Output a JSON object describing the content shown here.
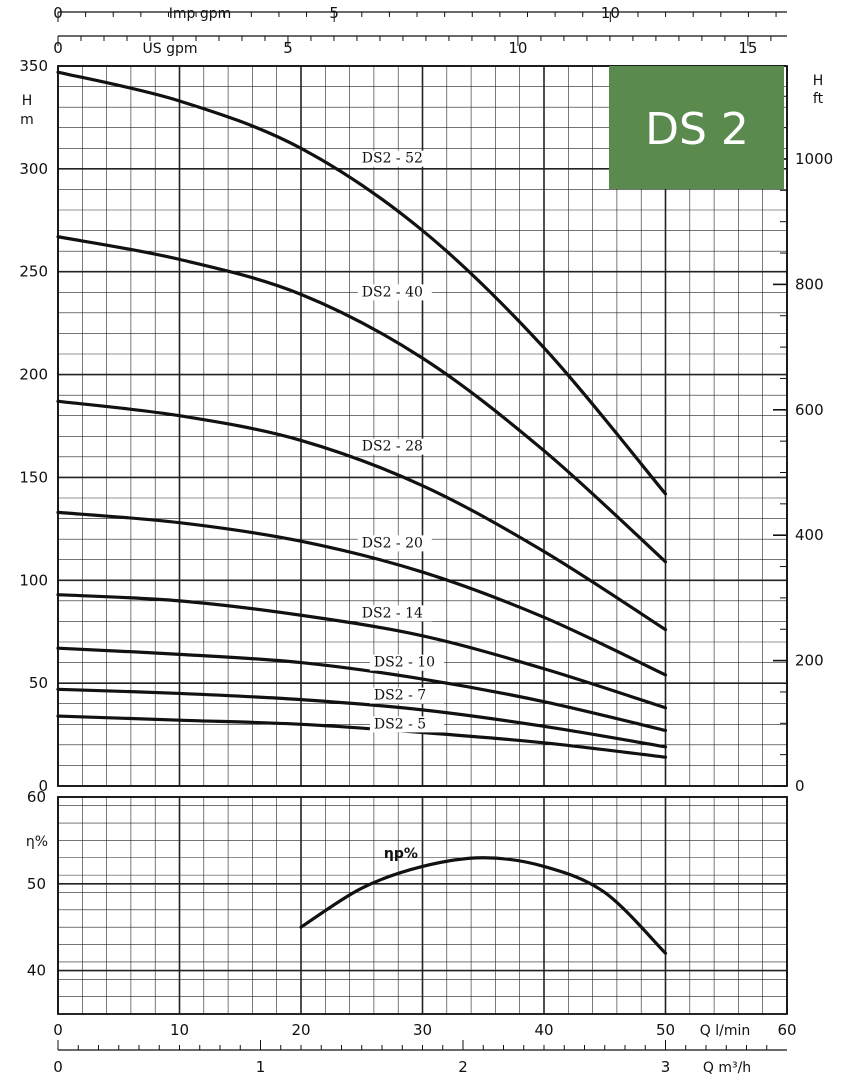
{
  "badge": {
    "text": "DS 2",
    "color": "#5b8a4f"
  },
  "colors": {
    "line": "#111111",
    "grid": "#222222",
    "background": "#ffffff"
  },
  "axes": {
    "imp_gpm": {
      "label": "Imp gpm",
      "ticks": [
        "0",
        "5",
        "10"
      ],
      "values": [
        0,
        5,
        10
      ]
    },
    "us_gpm": {
      "label": "US gpm",
      "ticks": [
        "0",
        "5",
        "10",
        "15"
      ],
      "values": [
        0,
        5,
        10,
        15
      ]
    },
    "head_m": {
      "label": [
        "H",
        "m"
      ],
      "ticks": [
        "350",
        "300",
        "250",
        "200",
        "150",
        "100",
        "50",
        "0"
      ],
      "values": [
        350,
        300,
        250,
        200,
        150,
        100,
        50,
        0
      ]
    },
    "head_ft": {
      "label": [
        "H",
        "ft"
      ],
      "ticks": [
        "1000",
        "800",
        "600",
        "400",
        "200",
        "0"
      ],
      "values": [
        1000,
        800,
        600,
        400,
        200,
        0
      ]
    },
    "efficiency": {
      "label": "η%",
      "ticks": [
        "60",
        "50",
        "40"
      ],
      "values": [
        60,
        50,
        40
      ]
    },
    "q_lmin": {
      "label": "Q l/min",
      "ticks": [
        "0",
        "10",
        "20",
        "30",
        "40",
        "50",
        "60"
      ],
      "values": [
        0,
        10,
        20,
        30,
        40,
        50,
        60
      ]
    },
    "q_m3h": {
      "label": "Q m³/h",
      "ticks": [
        "0",
        "1",
        "2",
        "3"
      ],
      "values": [
        0,
        1,
        2,
        3
      ]
    }
  },
  "chart_data": [
    {
      "type": "line",
      "title": "DS 2",
      "xlabel": "Q l/min",
      "ylabel": "H m",
      "xlim": [
        0,
        60
      ],
      "ylim": [
        0,
        350
      ],
      "grid": true,
      "series": [
        {
          "name": "DS2 - 52",
          "label_at": [
            25,
            303
          ],
          "x": [
            0,
            10,
            20,
            30,
            40,
            50
          ],
          "y": [
            347,
            333,
            310,
            270,
            213,
            142
          ]
        },
        {
          "name": "DS2 - 40",
          "label_at": [
            25,
            238
          ],
          "x": [
            0,
            10,
            20,
            30,
            40,
            50
          ],
          "y": [
            267,
            256,
            239,
            208,
            163,
            109
          ]
        },
        {
          "name": "DS2 - 28",
          "label_at": [
            25,
            163
          ],
          "x": [
            0,
            10,
            20,
            30,
            40,
            50
          ],
          "y": [
            187,
            180,
            168,
            146,
            114,
            76
          ]
        },
        {
          "name": "DS2 - 20",
          "label_at": [
            25,
            116
          ],
          "x": [
            0,
            10,
            20,
            30,
            40,
            50
          ],
          "y": [
            133,
            128,
            119,
            104,
            82,
            54
          ]
        },
        {
          "name": "DS2 - 14",
          "label_at": [
            25,
            82
          ],
          "x": [
            0,
            10,
            20,
            30,
            40,
            50
          ],
          "y": [
            93,
            90,
            83,
            73,
            57,
            38
          ]
        },
        {
          "name": "DS2 - 10",
          "label_at": [
            26,
            58
          ],
          "x": [
            0,
            10,
            20,
            30,
            40,
            50
          ],
          "y": [
            67,
            64,
            60,
            52,
            41,
            27
          ]
        },
        {
          "name": "DS2 - 7",
          "label_at": [
            26,
            42
          ],
          "x": [
            0,
            10,
            20,
            30,
            40,
            50
          ],
          "y": [
            47,
            45,
            42,
            37,
            29,
            19
          ]
        },
        {
          "name": "DS2 - 5",
          "label_at": [
            26,
            28
          ],
          "x": [
            0,
            10,
            20,
            30,
            40,
            50
          ],
          "y": [
            34,
            32,
            30,
            26,
            21,
            14
          ]
        }
      ]
    },
    {
      "type": "line",
      "xlabel": "Q l/min",
      "ylabel": "η%",
      "xlim": [
        0,
        60
      ],
      "ylim": [
        35,
        60
      ],
      "grid": true,
      "series": [
        {
          "name": "ηp%",
          "label_at": [
            26,
            53
          ],
          "x": [
            20,
            25,
            30,
            35,
            40,
            45,
            50
          ],
          "y": [
            45,
            49.5,
            52,
            53,
            52,
            49,
            42
          ]
        }
      ]
    }
  ]
}
